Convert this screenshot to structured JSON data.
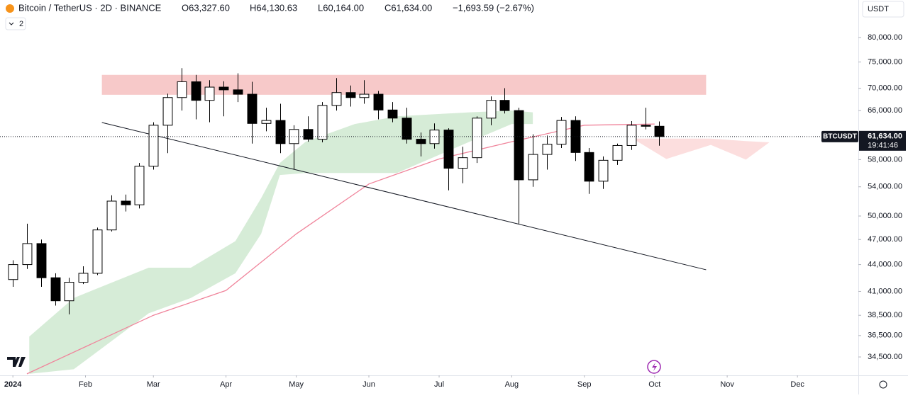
{
  "header": {
    "title": "Bitcoin / TetherUS · 2D · BINANCE",
    "open": "O63,327.60",
    "high": "H64,130.63",
    "low": "L60,164.00",
    "close": "C61,634.00",
    "change": "−1,693.59 (−2.67%)",
    "indicators": "2",
    "currency": "USDT"
  },
  "chart_data": {
    "type": "candlestick",
    "log_scale": true,
    "xlim": [
      -5.5,
      361
    ],
    "ylim": [
      32870,
      88300
    ],
    "xticks": [
      {
        "value": 0,
        "label": "2024"
      },
      {
        "value": 31,
        "label": "Feb"
      },
      {
        "value": 60,
        "label": "Mar"
      },
      {
        "value": 91,
        "label": "Apr"
      },
      {
        "value": 121,
        "label": "May"
      },
      {
        "value": 152,
        "label": "Jun"
      },
      {
        "value": 182,
        "label": "Jul"
      },
      {
        "value": 213,
        "label": "Aug"
      },
      {
        "value": 244,
        "label": "Sep"
      },
      {
        "value": 274,
        "label": "Oct"
      },
      {
        "value": 305,
        "label": "Nov"
      },
      {
        "value": 335,
        "label": "Dec"
      }
    ],
    "yticks": [
      {
        "value": 80000,
        "label": "80,000.00"
      },
      {
        "value": 75000,
        "label": "75,000.00"
      },
      {
        "value": 70000,
        "label": "70,000.00"
      },
      {
        "value": 66000,
        "label": "66,000.00"
      },
      {
        "value": 58000,
        "label": "58,000.00"
      },
      {
        "value": 54000,
        "label": "54,000.00"
      },
      {
        "value": 50000,
        "label": "50,000.00"
      },
      {
        "value": 47000,
        "label": "47,000.00"
      },
      {
        "value": 44000,
        "label": "44,000.00"
      },
      {
        "value": 41000,
        "label": "41,000.00"
      },
      {
        "value": 38500,
        "label": "38,500.00"
      },
      {
        "value": 36500,
        "label": "36,500.00"
      },
      {
        "value": 34500,
        "label": "34,500.00"
      }
    ],
    "x": [
      0,
      6,
      12,
      18,
      24,
      30,
      36,
      42,
      48,
      54,
      60,
      66,
      72,
      78,
      84,
      90,
      96,
      102,
      108,
      114,
      120,
      126,
      132,
      138,
      144,
      150,
      156,
      162,
      168,
      174,
      180,
      186,
      192,
      198,
      204,
      210,
      216,
      222,
      228,
      234,
      240,
      246,
      252,
      258,
      264,
      270,
      276
    ],
    "open": [
      42300,
      44000,
      46500,
      42500,
      40000,
      42000,
      43000,
      48200,
      52000,
      51500,
      57000,
      63500,
      68300,
      71200,
      67800,
      70200,
      69700,
      68900,
      63800,
      64300,
      60500,
      62800,
      61200,
      66900,
      69200,
      68300,
      68900,
      66100,
      64700,
      61200,
      60500,
      62700,
      56700,
      58300,
      64700,
      67800,
      66000,
      55000,
      58800,
      60400,
      64300,
      59100,
      54800,
      57900,
      60200,
      63500,
      63327.6
    ],
    "high": [
      44500,
      49000,
      47000,
      43000,
      42500,
      43800,
      48500,
      52800,
      52900,
      57500,
      64000,
      69000,
      73800,
      72500,
      71500,
      71300,
      72800,
      71200,
      66500,
      67200,
      63500,
      65000,
      67500,
      71900,
      70500,
      71500,
      69500,
      67500,
      66500,
      62300,
      63800,
      63000,
      60000,
      65000,
      68500,
      70000,
      66500,
      62000,
      61800,
      64900,
      65000,
      59800,
      58500,
      60500,
      64200,
      66500,
      64130.63
    ],
    "low": [
      41500,
      43500,
      41500,
      39500,
      38600,
      41800,
      42800,
      48000,
      50600,
      51000,
      56500,
      59000,
      66000,
      64500,
      64000,
      65000,
      67500,
      60500,
      62500,
      59000,
      56500,
      60800,
      60700,
      66000,
      66700,
      67200,
      64500,
      64000,
      60500,
      58500,
      59700,
      53500,
      54500,
      57500,
      63500,
      65500,
      49000,
      54000,
      56500,
      59800,
      57800,
      53000,
      53700,
      57200,
      59500,
      62800,
      60164
    ],
    "close": [
      44000,
      46500,
      42500,
      40000,
      42000,
      43000,
      48200,
      52000,
      51500,
      57000,
      63500,
      68300,
      71200,
      67800,
      70200,
      69700,
      68900,
      63800,
      64300,
      60500,
      62800,
      61200,
      66900,
      69200,
      68300,
      68900,
      66100,
      64700,
      61200,
      60500,
      62700,
      56700,
      58300,
      64700,
      67800,
      66000,
      55000,
      58800,
      60400,
      64300,
      59100,
      54800,
      57900,
      60200,
      63500,
      63327.6,
      61634
    ],
    "ma": {
      "color": "#f0849b",
      "x": [
        6,
        60,
        91,
        121,
        152,
        182,
        213,
        244,
        274
      ],
      "values": [
        33000,
        38500,
        41100,
        47700,
        54400,
        58100,
        60800,
        63500,
        63700
      ]
    },
    "clouds": [
      {
        "color": "#c8e6c9",
        "x": [
          7,
          26,
          58,
          76,
          95,
          106,
          114,
          125,
          146,
          164,
          195,
          213,
          222
        ],
        "upper": [
          36400,
          40300,
          43640,
          43640,
          46800,
          52400,
          57500,
          60800,
          63700,
          65000,
          65700,
          66000,
          65700
        ],
        "lower": [
          33000,
          33400,
          38700,
          40300,
          43000,
          47700,
          55700,
          56000,
          56000,
          56000,
          60800,
          63700,
          63700
        ]
      },
      {
        "color": "#fbd3d3",
        "x": [
          266,
          279,
          298,
          313,
          323
        ],
        "upper": [
          61300,
          61300,
          61300,
          60900,
          60700
        ],
        "lower": [
          61000,
          58100,
          60300,
          58000,
          60700
        ]
      }
    ],
    "zone": {
      "color": "#f7c9c9",
      "x": [
        38,
        296
      ],
      "y": [
        68800,
        72500
      ]
    },
    "trendline": {
      "color": "#131722",
      "x": [
        38,
        296
      ],
      "y": [
        63960,
        43400
      ]
    },
    "price_tag": {
      "symbol": "BTCUSDT",
      "label": "61,634.00",
      "timer": "19:41:46"
    },
    "up_color": "#ffffff",
    "down_color": "#000000"
  }
}
